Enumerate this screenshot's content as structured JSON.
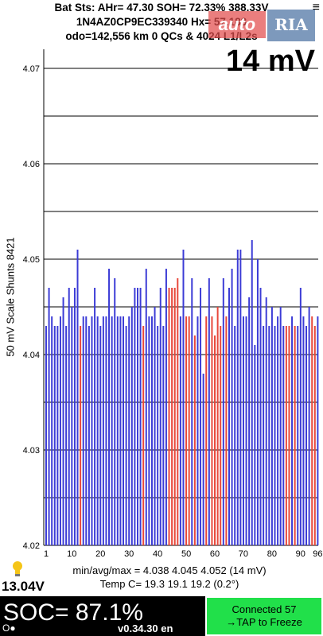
{
  "header": {
    "line1": "Bat Sts:  AHr= 47.30  SOH= 72.33%   388.33V",
    "line2": "1N4AZ0CP9EC339340   Hx= 57.183",
    "line3": "odo=142,556 km  0 QCs & 4024 L1/L2s",
    "menu_icon": "menu-icon"
  },
  "watermark": {
    "left": "auto",
    "right": "RIA"
  },
  "scale_label": "14 mV",
  "y_axis_label": "50 mV Scale   Shunts 8421",
  "stats": {
    "line1": "min/avg/max = 4.038 4.045 4.052  (14 mV)",
    "line2": "Temp C= 19.3  19.1  19.2  (0.2°)"
  },
  "voltage": "13.04V",
  "soc": "SOC= 87.1%",
  "version": "v0.34.30 en",
  "status_dots": "O●",
  "connect": {
    "line1": "Connected 57",
    "line2": "→TAP to Freeze"
  },
  "colors": {
    "normal": "#3b3bd6",
    "shunted": "#e8473a",
    "connect_bg": "#21e04a"
  },
  "chart_data": {
    "type": "bar",
    "ylim": [
      4.02,
      4.072
    ],
    "yticks": [
      "4.02",
      "4.03",
      "4.04",
      "4.05",
      "4.06",
      "4.07"
    ],
    "xticks": [
      "1",
      "10",
      "20",
      "30",
      "40",
      "50",
      "60",
      "70",
      "80",
      "90",
      "96"
    ],
    "grid": true,
    "cells": [
      {
        "v": 4.043,
        "s": 0
      },
      {
        "v": 4.047,
        "s": 0
      },
      {
        "v": 4.044,
        "s": 0
      },
      {
        "v": 4.043,
        "s": 0
      },
      {
        "v": 4.043,
        "s": 0
      },
      {
        "v": 4.044,
        "s": 0
      },
      {
        "v": 4.046,
        "s": 0
      },
      {
        "v": 4.043,
        "s": 0
      },
      {
        "v": 4.047,
        "s": 0
      },
      {
        "v": 4.045,
        "s": 0
      },
      {
        "v": 4.047,
        "s": 0
      },
      {
        "v": 4.051,
        "s": 0
      },
      {
        "v": 4.043,
        "s": 1
      },
      {
        "v": 4.044,
        "s": 0
      },
      {
        "v": 4.044,
        "s": 0
      },
      {
        "v": 4.043,
        "s": 0
      },
      {
        "v": 4.044,
        "s": 0
      },
      {
        "v": 4.047,
        "s": 0
      },
      {
        "v": 4.044,
        "s": 0
      },
      {
        "v": 4.043,
        "s": 0
      },
      {
        "v": 4.044,
        "s": 0
      },
      {
        "v": 4.044,
        "s": 0
      },
      {
        "v": 4.049,
        "s": 0
      },
      {
        "v": 4.044,
        "s": 0
      },
      {
        "v": 4.048,
        "s": 0
      },
      {
        "v": 4.044,
        "s": 0
      },
      {
        "v": 4.044,
        "s": 0
      },
      {
        "v": 4.044,
        "s": 0
      },
      {
        "v": 4.043,
        "s": 0
      },
      {
        "v": 4.044,
        "s": 0
      },
      {
        "v": 4.045,
        "s": 0
      },
      {
        "v": 4.047,
        "s": 0
      },
      {
        "v": 4.047,
        "s": 0
      },
      {
        "v": 4.047,
        "s": 0
      },
      {
        "v": 4.043,
        "s": 1
      },
      {
        "v": 4.049,
        "s": 0
      },
      {
        "v": 4.044,
        "s": 0
      },
      {
        "v": 4.044,
        "s": 0
      },
      {
        "v": 4.045,
        "s": 0
      },
      {
        "v": 4.043,
        "s": 0
      },
      {
        "v": 4.047,
        "s": 0
      },
      {
        "v": 4.043,
        "s": 0
      },
      {
        "v": 4.049,
        "s": 0
      },
      {
        "v": 4.047,
        "s": 1
      },
      {
        "v": 4.047,
        "s": 1
      },
      {
        "v": 4.047,
        "s": 1
      },
      {
        "v": 4.048,
        "s": 1
      },
      {
        "v": 4.044,
        "s": 0
      },
      {
        "v": 4.051,
        "s": 0
      },
      {
        "v": 4.044,
        "s": 1
      },
      {
        "v": 4.044,
        "s": 1
      },
      {
        "v": 4.048,
        "s": 0
      },
      {
        "v": 4.042,
        "s": 1
      },
      {
        "v": 4.044,
        "s": 0
      },
      {
        "v": 4.047,
        "s": 0
      },
      {
        "v": 4.038,
        "s": 0
      },
      {
        "v": 4.044,
        "s": 1
      },
      {
        "v": 4.048,
        "s": 0
      },
      {
        "v": 4.044,
        "s": 1
      },
      {
        "v": 4.042,
        "s": 1
      },
      {
        "v": 4.045,
        "s": 1
      },
      {
        "v": 4.043,
        "s": 1
      },
      {
        "v": 4.048,
        "s": 0
      },
      {
        "v": 4.044,
        "s": 1
      },
      {
        "v": 4.047,
        "s": 0
      },
      {
        "v": 4.049,
        "s": 0
      },
      {
        "v": 4.043,
        "s": 0
      },
      {
        "v": 4.051,
        "s": 0
      },
      {
        "v": 4.051,
        "s": 0
      },
      {
        "v": 4.044,
        "s": 0
      },
      {
        "v": 4.044,
        "s": 0
      },
      {
        "v": 4.046,
        "s": 0
      },
      {
        "v": 4.052,
        "s": 0
      },
      {
        "v": 4.041,
        "s": 0
      },
      {
        "v": 4.05,
        "s": 0
      },
      {
        "v": 4.047,
        "s": 0
      },
      {
        "v": 4.043,
        "s": 0
      },
      {
        "v": 4.046,
        "s": 0
      },
      {
        "v": 4.043,
        "s": 0
      },
      {
        "v": 4.045,
        "s": 0
      },
      {
        "v": 4.043,
        "s": 0
      },
      {
        "v": 4.044,
        "s": 0
      },
      {
        "v": 4.045,
        "s": 0
      },
      {
        "v": 4.043,
        "s": 0
      },
      {
        "v": 4.043,
        "s": 1
      },
      {
        "v": 4.043,
        "s": 1
      },
      {
        "v": 4.044,
        "s": 0
      },
      {
        "v": 4.043,
        "s": 1
      },
      {
        "v": 4.043,
        "s": 0
      },
      {
        "v": 4.047,
        "s": 0
      },
      {
        "v": 4.044,
        "s": 0
      },
      {
        "v": 4.043,
        "s": 0
      },
      {
        "v": 4.045,
        "s": 0
      },
      {
        "v": 4.044,
        "s": 1
      },
      {
        "v": 4.043,
        "s": 1
      },
      {
        "v": 4.044,
        "s": 0
      }
    ]
  }
}
